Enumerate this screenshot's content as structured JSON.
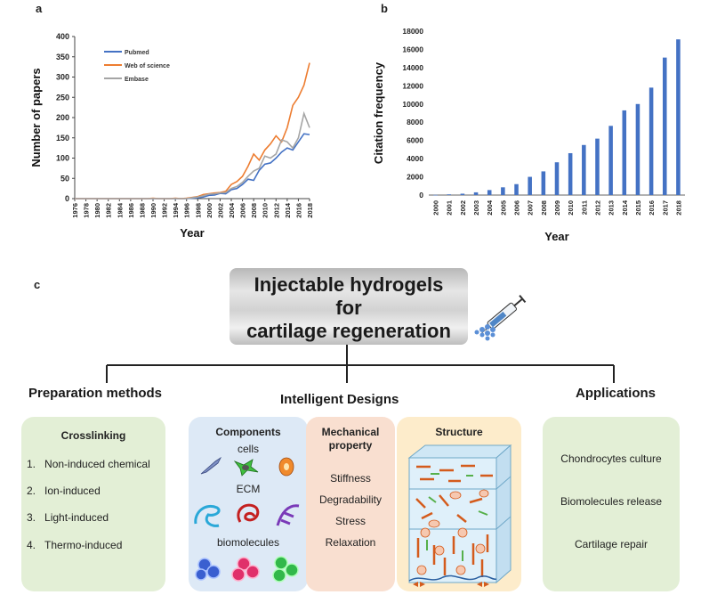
{
  "panels": {
    "a_label": "a",
    "b_label": "b",
    "c_label": "c"
  },
  "chart_data": [
    {
      "type": "line",
      "xlabel": "Year",
      "ylabel": "Number of papers",
      "ylim": [
        0,
        400
      ],
      "yticks": [
        0,
        50,
        100,
        150,
        200,
        250,
        300,
        350,
        400
      ],
      "x": [
        1976,
        1977,
        1978,
        1979,
        1980,
        1981,
        1982,
        1983,
        1984,
        1985,
        1986,
        1987,
        1988,
        1989,
        1990,
        1991,
        1992,
        1993,
        1994,
        1995,
        1996,
        1997,
        1998,
        1999,
        2000,
        2001,
        2002,
        2003,
        2004,
        2005,
        2006,
        2007,
        2008,
        2009,
        2010,
        2011,
        2012,
        2013,
        2014,
        2015,
        2016,
        2017,
        2018
      ],
      "xtick_labels": [
        "1976",
        "1978",
        "1980",
        "1982",
        "1984",
        "1986",
        "1988",
        "1990",
        "1992",
        "1994",
        "1996",
        "1998",
        "2000",
        "2002",
        "2004",
        "2006",
        "2008",
        "2010",
        "2012",
        "2014",
        "2016",
        "2018"
      ],
      "legend_position": "top-left",
      "series": [
        {
          "name": "Pubmed",
          "color": "#4472c4",
          "values": [
            0,
            0,
            0,
            0,
            0,
            0,
            0,
            0,
            0,
            0,
            0,
            0,
            0,
            0,
            0,
            0,
            0,
            0,
            0,
            0,
            0,
            1,
            2,
            4,
            8,
            9,
            13,
            12,
            22,
            25,
            35,
            48,
            45,
            70,
            85,
            88,
            100,
            115,
            125,
            120,
            140,
            160,
            158
          ]
        },
        {
          "name": "Web of science",
          "color": "#ed7d31",
          "values": [
            0,
            0,
            0,
            0,
            0,
            0,
            0,
            0,
            0,
            0,
            0,
            0,
            0,
            0,
            1,
            0,
            0,
            0,
            1,
            0,
            1,
            3,
            5,
            10,
            12,
            14,
            15,
            18,
            35,
            42,
            55,
            80,
            110,
            95,
            120,
            135,
            155,
            140,
            175,
            230,
            250,
            280,
            335
          ]
        },
        {
          "name": "Embase",
          "color": "#a5a5a5",
          "values": [
            0,
            0,
            0,
            0,
            0,
            0,
            0,
            0,
            0,
            0,
            0,
            0,
            0,
            0,
            0,
            0,
            0,
            0,
            0,
            0,
            0,
            2,
            4,
            7,
            11,
            12,
            14,
            15,
            25,
            30,
            40,
            55,
            68,
            75,
            105,
            100,
            110,
            145,
            140,
            125,
            150,
            210,
            175
          ]
        }
      ]
    },
    {
      "type": "bar",
      "xlabel": "Year",
      "ylabel": "Citation frequency",
      "ylim": [
        0,
        18000
      ],
      "yticks": [
        0,
        2000,
        4000,
        6000,
        8000,
        10000,
        12000,
        14000,
        16000,
        18000
      ],
      "categories": [
        "2000",
        "2001",
        "2002",
        "2003",
        "2004",
        "2005",
        "2006",
        "2007",
        "2008",
        "2009",
        "2010",
        "2011",
        "2012",
        "2013",
        "2014",
        "2015",
        "2016",
        "2017",
        "2018"
      ],
      "values": [
        20,
        80,
        150,
        300,
        550,
        850,
        1200,
        2000,
        2600,
        3600,
        4600,
        5500,
        6200,
        7600,
        9300,
        10000,
        11800,
        15100,
        17100
      ],
      "color": "#4472c4"
    }
  ],
  "diagram": {
    "title_lines": [
      "Injectable hydrogels",
      "for",
      "cartilage regeneration"
    ],
    "sections": {
      "preparation": "Preparation methods",
      "designs": "Intelligent Designs",
      "applications": "Applications"
    },
    "crosslinking": {
      "title": "Crosslinking",
      "items": [
        {
          "num": "1.",
          "text": "Non-induced chemical"
        },
        {
          "num": "2.",
          "text": "Ion-induced"
        },
        {
          "num": "3.",
          "text": "Light-induced"
        },
        {
          "num": "4.",
          "text": "Thermo-induced"
        }
      ]
    },
    "components": {
      "title": "Components",
      "cells": "cells",
      "ecm": "ECM",
      "biomolecules": "biomolecules"
    },
    "mechanical": {
      "title_line1": "Mechanical",
      "title_line2": "property",
      "items": [
        "Stiffness",
        "Degradability",
        "Stress",
        "Relaxation"
      ]
    },
    "structure": {
      "title": "Structure"
    },
    "applications": {
      "items": [
        "Chondrocytes culture",
        "Biomolecules release",
        "Cartilage repair"
      ]
    },
    "colors": {
      "green_box": "#e3efd6",
      "blue_box": "#dde9f6",
      "peach_box": "#f9dfd0",
      "yellow_box": "#fdeccb"
    }
  }
}
